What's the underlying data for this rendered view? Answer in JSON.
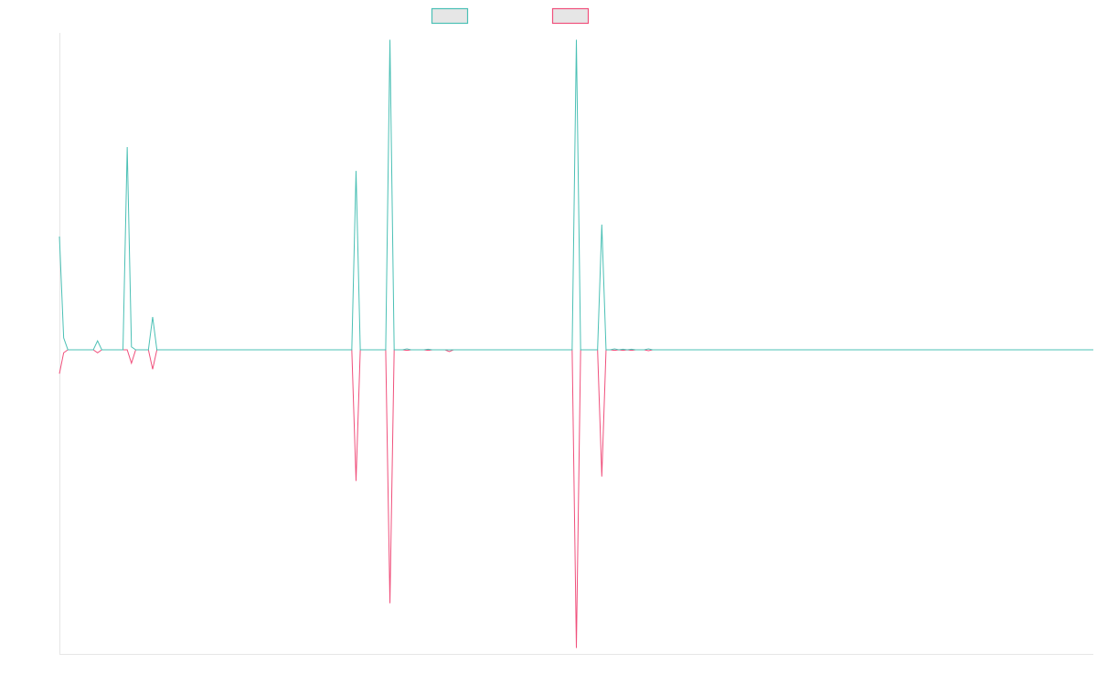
{
  "colors": {
    "teal": "#4bc0b5",
    "pink": "#f0507c",
    "swatch_fill": "#e6e6e6",
    "axis": "#e6e6e6"
  },
  "chart_data": {
    "type": "line",
    "title": "",
    "xlabel": "",
    "ylabel": "",
    "legend": {
      "placement": "top-center",
      "labels": [
        "",
        ""
      ]
    },
    "grid": false,
    "x": [
      0,
      1,
      2,
      3,
      4,
      5,
      6,
      7,
      8,
      9,
      10,
      11,
      12,
      13,
      14,
      15,
      16,
      17,
      18,
      19,
      20,
      21,
      22,
      23,
      24,
      25,
      26,
      27,
      28,
      29,
      30,
      31,
      32,
      33,
      34,
      35,
      36,
      37,
      38,
      39,
      40,
      41,
      42,
      43,
      44,
      45,
      46,
      47,
      48,
      49,
      50,
      51,
      52,
      53,
      54,
      55,
      56,
      57,
      58,
      59,
      60,
      61,
      62,
      63,
      64,
      65,
      66,
      67,
      68,
      69,
      70,
      71,
      72,
      73,
      74,
      75,
      76,
      77,
      78,
      79,
      80,
      81,
      82,
      83,
      84,
      85,
      86,
      87,
      88,
      89,
      90,
      91,
      92,
      93,
      94,
      95,
      96,
      97,
      98,
      99,
      100,
      101,
      102,
      103,
      104,
      105,
      106,
      107,
      108,
      109,
      110,
      111,
      112,
      113,
      114,
      115,
      116,
      117,
      118,
      119,
      120,
      121,
      122,
      123,
      124,
      125,
      126,
      127,
      128,
      129,
      130,
      131,
      132,
      133,
      134,
      135,
      136,
      137,
      138,
      139,
      140,
      141,
      142,
      143,
      144,
      145,
      146,
      147,
      148,
      149,
      150,
      151,
      152,
      153,
      154,
      155,
      156,
      157,
      158,
      159,
      160,
      161,
      162,
      163,
      164,
      165,
      166,
      167,
      168,
      169,
      170,
      171,
      172,
      173,
      174,
      175,
      176,
      177,
      178,
      179,
      180,
      181,
      182,
      183,
      184,
      185,
      186,
      187,
      188,
      189,
      190,
      191,
      192,
      193,
      194,
      195,
      196,
      197,
      198,
      199,
      200,
      201,
      202,
      203,
      204,
      205,
      206,
      207,
      208,
      209,
      210,
      211,
      212,
      213,
      214,
      215,
      216,
      217,
      218,
      219,
      220,
      221,
      222,
      223,
      224,
      225,
      226,
      227,
      228,
      229,
      230,
      231,
      232,
      233,
      234,
      235,
      236,
      237,
      238,
      239,
      240,
      241,
      242,
      243,
      244
    ],
    "ylim": [
      -1.02,
      1.02
    ],
    "series": [
      {
        "color": "#4bc0b5",
        "spikes": [
          [
            0,
            0.38
          ],
          [
            1,
            0.04
          ],
          [
            9,
            0.03
          ],
          [
            16,
            0.68
          ],
          [
            17,
            0.01
          ],
          [
            22,
            0.11
          ],
          [
            70,
            0.6
          ],
          [
            78,
            1.04
          ],
          [
            82,
            0.003
          ],
          [
            87,
            0.002
          ],
          [
            122,
            1.04
          ],
          [
            128,
            0.42
          ],
          [
            131,
            0.003
          ],
          [
            133,
            0.002
          ],
          [
            135,
            0.002
          ],
          [
            139,
            0.003
          ]
        ]
      },
      {
        "color": "#f0507c",
        "spikes": [
          [
            0,
            -0.08
          ],
          [
            1,
            -0.01
          ],
          [
            9,
            -0.01
          ],
          [
            17,
            -0.045
          ],
          [
            22,
            -0.065
          ],
          [
            70,
            -0.44
          ],
          [
            78,
            -0.85
          ],
          [
            82,
            -0.002
          ],
          [
            87,
            -0.002
          ],
          [
            92,
            -0.006
          ],
          [
            122,
            -1.0
          ],
          [
            128,
            -0.425
          ],
          [
            131,
            -0.002
          ],
          [
            133,
            -0.002
          ],
          [
            135,
            -0.002
          ],
          [
            139,
            -0.003
          ]
        ]
      }
    ]
  }
}
